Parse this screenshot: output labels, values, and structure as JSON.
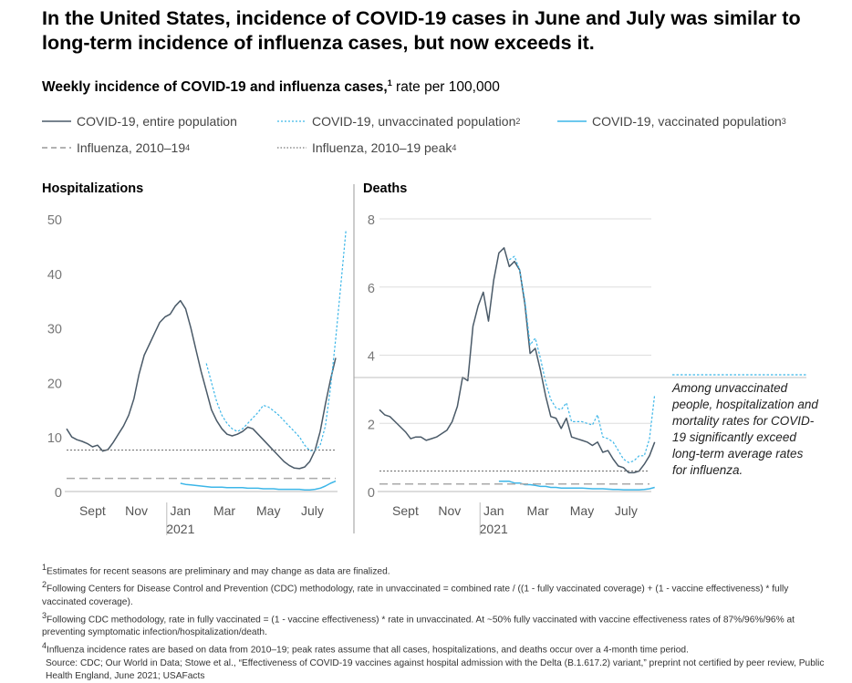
{
  "title": "In the United States, incidence of COVID-19 cases in June and July was similar to long-term incidence of influenza cases, but now exceeds it.",
  "subtitle": {
    "bold": "Weekly incidence of COVID-19 and influenza cases,",
    "sup": "1",
    "rest": " rate per 100,000"
  },
  "legend": [
    {
      "label": "COVID-19, entire population",
      "sup": "",
      "style": "solid-dark"
    },
    {
      "label": "COVID-19, unvaccinated population",
      "sup": "2",
      "style": "dotted-blue"
    },
    {
      "label": "COVID-19, vaccinated population",
      "sup": "3",
      "style": "solid-blue"
    },
    {
      "label": "Influenza, 2010–19",
      "sup": "4",
      "style": "dashed-gray"
    },
    {
      "label": "Influenza, 2010–19 peak",
      "sup": "4",
      "style": "dotted-gray"
    }
  ],
  "colors": {
    "dark": "#4a5a68",
    "blue": "#3cb6e8",
    "gray": "#aaaaaa",
    "peak": "#777777",
    "grid": "#dddddd"
  },
  "annotation": "Among unvaccinated people, hospitalization and mortality rates for COVID-19 significantly exceed long-term average rates for influenza.",
  "chart_data": [
    {
      "type": "line",
      "title": "Hospitalizations",
      "ylim": [
        0,
        50
      ],
      "yticks": [
        0,
        10,
        20,
        30,
        40,
        50
      ],
      "xlim": [
        0,
        52
      ],
      "xticks": [
        {
          "x": 5,
          "label": "Sept"
        },
        {
          "x": 13.5,
          "label": "Nov"
        },
        {
          "x": 22,
          "label": "Jan",
          "sub": "2021"
        },
        {
          "x": 30.5,
          "label": "Mar"
        },
        {
          "x": 39,
          "label": "May"
        },
        {
          "x": 47.5,
          "label": "July"
        }
      ],
      "series": [
        {
          "name": "COVID-19, entire population",
          "x_start": 0,
          "values": [
            11.5,
            10,
            9.5,
            9.2,
            8.8,
            8.2,
            8.5,
            7.4,
            7.7,
            9,
            10.5,
            12,
            14,
            17,
            21.5,
            25,
            27,
            29,
            31,
            32,
            32.5,
            34,
            35,
            33.5,
            30,
            26,
            22,
            18.5,
            15,
            13,
            11.5,
            10.5,
            10.2,
            10.5,
            11,
            11.8,
            11.5,
            10.5,
            9.5,
            8.5,
            7.5,
            6.5,
            5.5,
            4.8,
            4.3,
            4.2,
            4.5,
            5.5,
            7.5,
            11,
            16,
            20.5,
            24.5
          ]
        },
        {
          "name": "COVID-19, unvaccinated population",
          "x_start": 27,
          "values": [
            23.5,
            20,
            16.5,
            14,
            12.5,
            11.5,
            11,
            11.5,
            12.5,
            13.5,
            14.5,
            15.8,
            15.5,
            14.8,
            14,
            13,
            12,
            11,
            10,
            8.5,
            7.5,
            7.5,
            8.5,
            12,
            19,
            28,
            38,
            48
          ]
        },
        {
          "name": "COVID-19, vaccinated population",
          "x_start": 22,
          "values": [
            1.5,
            1.3,
            1.2,
            1.1,
            1.0,
            0.9,
            0.8,
            0.8,
            0.8,
            0.7,
            0.7,
            0.7,
            0.7,
            0.6,
            0.6,
            0.6,
            0.5,
            0.5,
            0.5,
            0.4,
            0.4,
            0.4,
            0.4,
            0.4,
            0.3,
            0.3,
            0.4,
            0.6,
            1.0,
            1.5,
            1.9
          ]
        },
        {
          "name": "Influenza, 2010–19",
          "constant": 2.4
        },
        {
          "name": "Influenza, 2010–19 peak",
          "constant": 7.6
        }
      ]
    },
    {
      "type": "line",
      "title": "Deaths",
      "ylim": [
        0,
        8
      ],
      "yticks": [
        0,
        2,
        4,
        6,
        8
      ],
      "xlim": [
        0,
        52
      ],
      "xticks": [
        {
          "x": 5,
          "label": "Sept"
        },
        {
          "x": 13.5,
          "label": "Nov"
        },
        {
          "x": 22,
          "label": "Jan",
          "sub": "2021"
        },
        {
          "x": 30.5,
          "label": "Mar"
        },
        {
          "x": 39,
          "label": "May"
        },
        {
          "x": 47.5,
          "label": "July"
        }
      ],
      "series": [
        {
          "name": "COVID-19, entire population",
          "x_start": 0,
          "values": [
            2.4,
            2.25,
            2.2,
            2.05,
            1.9,
            1.75,
            1.55,
            1.6,
            1.6,
            1.5,
            1.55,
            1.6,
            1.7,
            1.8,
            2.05,
            2.5,
            3.35,
            3.25,
            4.85,
            5.45,
            5.85,
            5.0,
            6.2,
            7.0,
            7.15,
            6.6,
            6.75,
            6.5,
            5.5,
            4.05,
            4.2,
            3.55,
            2.8,
            2.2,
            2.15,
            1.85,
            2.15,
            1.6,
            1.55,
            1.5,
            1.45,
            1.35,
            1.45,
            1.15,
            1.2,
            0.95,
            0.75,
            0.7,
            0.55,
            0.55,
            0.6,
            0.8,
            1.05,
            1.45
          ]
        },
        {
          "name": "COVID-19, unvaccinated population",
          "x_start": 25,
          "values": [
            6.8,
            6.9,
            6.5,
            5.6,
            4.3,
            4.5,
            3.9,
            3.2,
            2.7,
            2.45,
            2.4,
            2.6,
            2.05,
            2.05,
            2.05,
            2.0,
            1.95,
            2.25,
            1.6,
            1.55,
            1.45,
            1.2,
            0.95,
            0.85,
            0.9,
            1.05,
            1.05,
            1.55,
            2.85
          ]
        },
        {
          "name": "COVID-19, vaccinated population",
          "x_start": 23,
          "values": [
            0.3,
            0.3,
            0.3,
            0.25,
            0.25,
            0.2,
            0.2,
            0.18,
            0.15,
            0.15,
            0.12,
            0.12,
            0.1,
            0.1,
            0.1,
            0.1,
            0.1,
            0.09,
            0.08,
            0.08,
            0.08,
            0.07,
            0.06,
            0.06,
            0.05,
            0.05,
            0.05,
            0.05,
            0.06,
            0.08,
            0.12
          ]
        },
        {
          "name": "Influenza, 2010–19",
          "constant": 0.22
        },
        {
          "name": "Influenza, 2010–19 peak",
          "constant": 0.6
        }
      ]
    }
  ],
  "footnotes": [
    {
      "sup": "1",
      "text": "Estimates for recent seasons are preliminary and may change as data are finalized."
    },
    {
      "sup": "2",
      "text": "Following Centers for Disease Control and Prevention (CDC) methodology, rate in unvaccinated = combined rate / ((1 - fully vaccinated coverage) + (1 - vaccine effectiveness) * fully vaccinated coverage)."
    },
    {
      "sup": "3",
      "text": "Following CDC methodology, rate in fully vaccinated = (1 - vaccine effectiveness) * rate in unvaccinated. At ~50% fully vaccinated with vaccine effectiveness rates of 87%/96%/96% at preventing symptomatic infection/hospitalization/death."
    },
    {
      "sup": "4",
      "text": "Influenza incidence rates are based on data from 2010–19; peak rates assume that all cases, hospitalizations, and deaths occur over a 4-month time period."
    }
  ],
  "source": "Source: CDC; Our World in Data; Stowe et al., “Effectiveness of COVID-19 vaccines against hospital admission with the Delta (B.1.617.2) variant,” preprint not certified by peer review, Public Health England, June 2021; USAFacts"
}
